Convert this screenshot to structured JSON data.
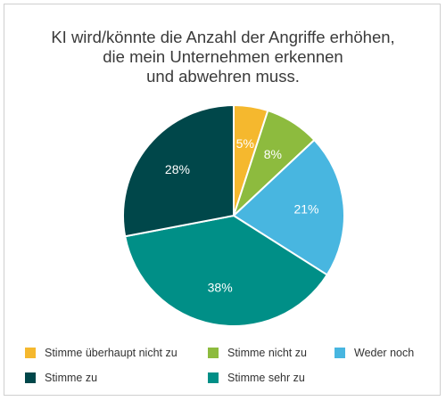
{
  "title_lines": [
    "KI wird/könnte die Anzahl der Angriffe erhöhen,",
    "die mein Unternehmen erkennen",
    "und abwehren muss."
  ],
  "chart_data": {
    "type": "pie",
    "title": "KI wird/könnte die Anzahl der Angriffe erhöhen, die mein Unternehmen erkennen und abwehren muss.",
    "unit": "%",
    "slices": [
      {
        "label": "Stimme überhaupt nicht zu",
        "value": 5,
        "display": "5%",
        "color": "#f5b82e"
      },
      {
        "label": "Stimme nicht zu",
        "value": 8,
        "display": "8%",
        "color": "#8dbb3e"
      },
      {
        "label": "Weder noch",
        "value": 21,
        "display": "21%",
        "color": "#48b6e0"
      },
      {
        "label": "Stimme sehr zu",
        "value": 38,
        "display": "38%",
        "color": "#008f87"
      },
      {
        "label": "Stimme zu",
        "value": 28,
        "display": "28%",
        "color": "#00474a"
      }
    ],
    "legend": {
      "placement": "bottom",
      "rows": [
        [
          "Stimme überhaupt nicht zu",
          "Stimme nicht zu",
          "Weder noch"
        ],
        [
          "Stimme zu",
          "Stimme sehr zu"
        ]
      ]
    }
  }
}
